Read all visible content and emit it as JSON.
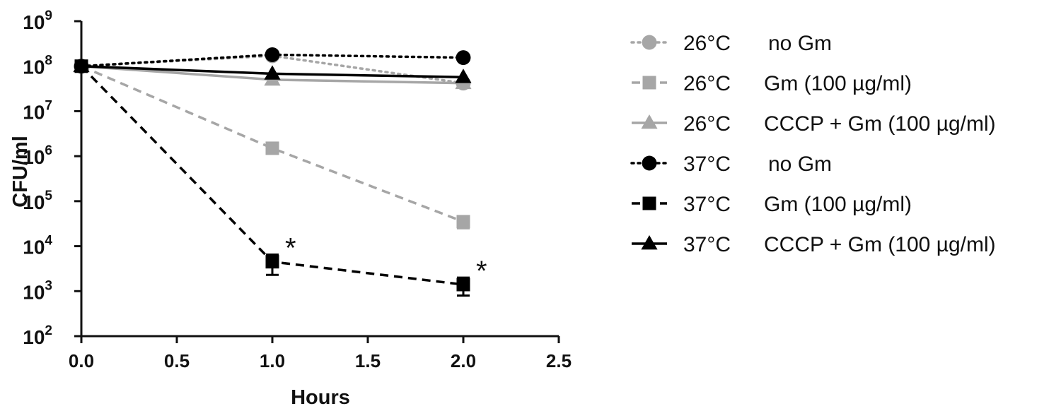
{
  "chart_data": {
    "type": "line",
    "xlabel": "Hours",
    "ylabel": "CFU/ml",
    "xlim": [
      0,
      2.5
    ],
    "ylim_log10": [
      2,
      9
    ],
    "yscale": "log",
    "x_ticks": [
      "0.0",
      "0.5",
      "1.0",
      "1.5",
      "2.0",
      "2.5"
    ],
    "y_ticks": [
      {
        "base": "10",
        "exp": "2"
      },
      {
        "base": "10",
        "exp": "3"
      },
      {
        "base": "10",
        "exp": "4"
      },
      {
        "base": "10",
        "exp": "5"
      },
      {
        "base": "10",
        "exp": "6"
      },
      {
        "base": "10",
        "exp": "7"
      },
      {
        "base": "10",
        "exp": "8"
      },
      {
        "base": "10",
        "exp": "9"
      }
    ],
    "grid": false,
    "legend_position": "right",
    "series": [
      {
        "name": "26°C   no Gm",
        "temp": "26°C",
        "treatment": "no Gm",
        "color": "#a6a6a6",
        "dash": "dotted",
        "marker": "circle",
        "x": [
          0,
          1,
          2
        ],
        "y": [
          100000000,
          170000000,
          42000000
        ]
      },
      {
        "name": "26°C   Gm (100 µg/ml)",
        "temp": "26°C",
        "treatment": "Gm (100 µg/ml)",
        "color": "#a6a6a6",
        "dash": "dashed",
        "marker": "square",
        "x": [
          0,
          1,
          2
        ],
        "y": [
          100000000,
          1500000,
          35000
        ],
        "err_low": [
          null,
          null,
          25000
        ],
        "err_high": [
          null,
          null,
          45000
        ]
      },
      {
        "name": "26°C   CCCP + Gm (100 µg/ml)",
        "temp": "26°C",
        "treatment": "CCCP + Gm (100 µg/ml)",
        "color": "#a6a6a6",
        "dash": "solid",
        "marker": "triangle",
        "x": [
          0,
          1,
          2
        ],
        "y": [
          100000000,
          50000000,
          42000000
        ]
      },
      {
        "name": "37°C   no Gm",
        "temp": "37°C",
        "treatment": "no Gm",
        "color": "#000000",
        "dash": "dotted",
        "marker": "circle",
        "x": [
          0,
          1,
          2
        ],
        "y": [
          100000000,
          180000000,
          155000000
        ]
      },
      {
        "name": "37°C   Gm (100 µg/ml)",
        "temp": "37°C",
        "treatment": "Gm (100 µg/ml)",
        "color": "#000000",
        "dash": "dashed",
        "marker": "square",
        "x": [
          0,
          1,
          2
        ],
        "y": [
          100000000,
          4500,
          1400
        ],
        "err_low": [
          null,
          2300,
          800
        ],
        "err_high": [
          null,
          6500,
          2000
        ]
      },
      {
        "name": "37°C   CCCP + Gm (100 µg/ml)",
        "temp": "37°C",
        "treatment": "CCCP + Gm (100 µg/ml)",
        "color": "#000000",
        "dash": "solid",
        "marker": "triangle",
        "x": [
          0,
          1,
          2
        ],
        "y": [
          100000000,
          68000000,
          57000000
        ]
      }
    ],
    "annotations": [
      {
        "text": "*",
        "x": 1.0,
        "y": 4500
      },
      {
        "text": "*",
        "x": 2.0,
        "y": 1400
      }
    ]
  }
}
